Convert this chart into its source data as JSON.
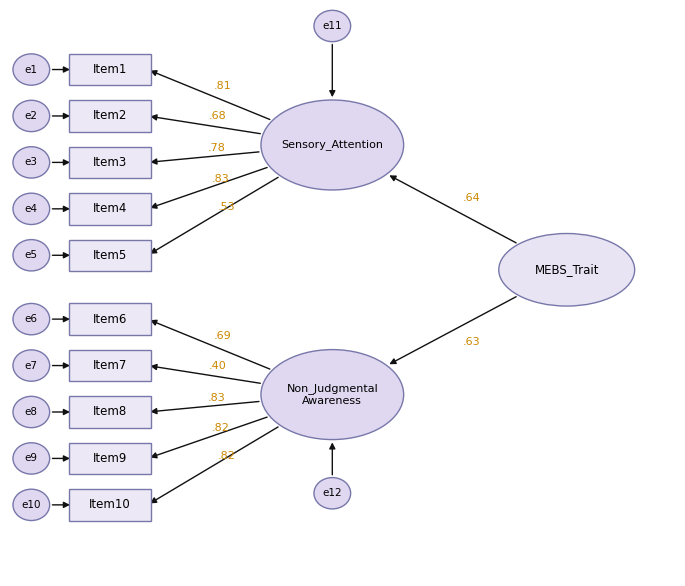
{
  "bg_color": "#ffffff",
  "box_fill": "#ede8f5",
  "box_edge": "#7777aa",
  "ellipse_fill": "#e0d8f0",
  "ellipse_edge": "#7777aa",
  "mebs_fill": "#e8e4f4",
  "mebs_edge": "#7777aa",
  "text_color": "#000000",
  "label_color": "#cc8800",
  "arrow_color": "#111111",
  "items_top": [
    "Item1",
    "Item2",
    "Item3",
    "Item4",
    "Item5"
  ],
  "items_bottom": [
    "Item6",
    "Item7",
    "Item8",
    "Item9",
    "Item10"
  ],
  "errors_top": [
    "e1",
    "e2",
    "e3",
    "e4",
    "e5"
  ],
  "errors_bottom": [
    "e6",
    "e7",
    "e8",
    "e9",
    "e10"
  ],
  "loadings_top": [
    ".81",
    ".68",
    ".78",
    ".83",
    ".53"
  ],
  "loadings_bottom": [
    ".69",
    ".40",
    ".83",
    ".82",
    ".82"
  ],
  "path_top": ".64",
  "path_bottom": ".63",
  "latent_top_label": "Sensory_Attention",
  "latent_bottom_label": "Non_Judgmental\nAwareness",
  "outcome_label": "MEBS_Trait",
  "e11_label": "e11",
  "e12_label": "e12",
  "figsize": [
    6.85,
    5.86
  ],
  "dpi": 100
}
